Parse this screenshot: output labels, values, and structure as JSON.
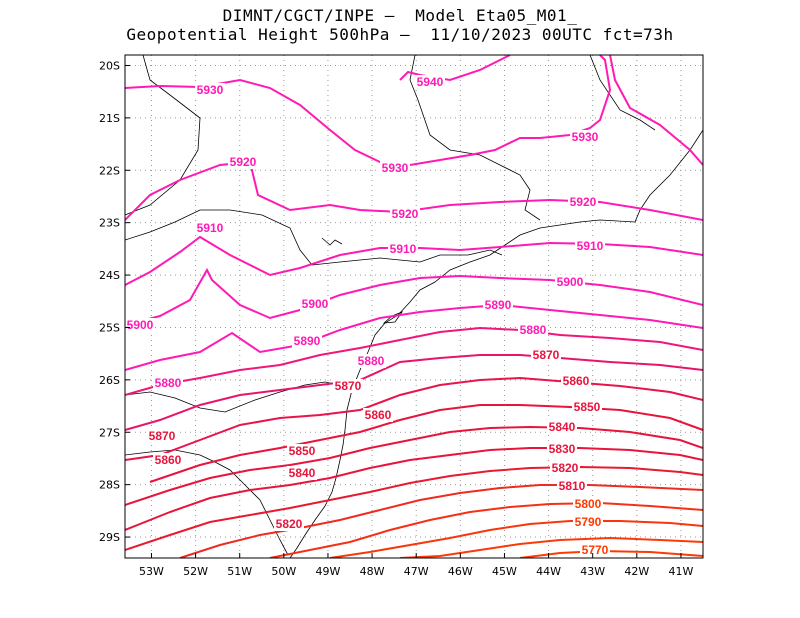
{
  "header": {
    "line1": "DIMNT/CGCT/INPE –  Model Eta05_M01_",
    "line2": "Geopotential Height 500hPa –  11/10/2023 00UTC fct=73h"
  },
  "axes": {
    "lat_labels": [
      "20S",
      "21S",
      "22S",
      "23S",
      "24S",
      "25S",
      "26S",
      "27S",
      "28S",
      "29S"
    ],
    "lon_labels": [
      "53W",
      "52W",
      "51W",
      "50W",
      "49W",
      "48W",
      "47W",
      "46W",
      "45W",
      "44W",
      "43W",
      "42W",
      "41W"
    ]
  },
  "map_data": {
    "type": "contour",
    "variable": "Geopotential Height 500hPa",
    "lon_range": [
      -53.6,
      -40.5
    ],
    "lat_range": [
      -29.4,
      -19.8
    ],
    "contour_labels": [
      {
        "value": 5940,
        "text": "5940"
      },
      {
        "value": 5930,
        "text": "5930"
      },
      {
        "value": 5930,
        "text": "5930"
      },
      {
        "value": 5930,
        "text": "5930"
      },
      {
        "value": 5920,
        "text": "5920"
      },
      {
        "value": 5920,
        "text": "5920"
      },
      {
        "value": 5920,
        "text": "5920"
      },
      {
        "value": 5910,
        "text": "5910"
      },
      {
        "value": 5910,
        "text": "5910"
      },
      {
        "value": 5910,
        "text": "5910"
      },
      {
        "value": 5900,
        "text": "5900"
      },
      {
        "value": 5900,
        "text": "5900"
      },
      {
        "value": 5900,
        "text": "5900"
      },
      {
        "value": 5890,
        "text": "5890"
      },
      {
        "value": 5890,
        "text": "5890"
      },
      {
        "value": 5880,
        "text": "5880"
      },
      {
        "value": 5880,
        "text": "5880"
      },
      {
        "value": 5880,
        "text": "5880"
      },
      {
        "value": 5870,
        "text": "5870"
      },
      {
        "value": 5870,
        "text": "5870"
      },
      {
        "value": 5870,
        "text": "5870"
      },
      {
        "value": 5860,
        "text": "5860"
      },
      {
        "value": 5860,
        "text": "5860"
      },
      {
        "value": 5860,
        "text": "5860"
      },
      {
        "value": 5850,
        "text": "5850"
      },
      {
        "value": 5850,
        "text": "5850"
      },
      {
        "value": 5840,
        "text": "5840"
      },
      {
        "value": 5840,
        "text": "5840"
      },
      {
        "value": 5830,
        "text": "5830"
      },
      {
        "value": 5820,
        "text": "5820"
      },
      {
        "value": 5820,
        "text": "5820"
      },
      {
        "value": 5810,
        "text": "5810"
      },
      {
        "value": 5800,
        "text": "5800"
      },
      {
        "value": 5790,
        "text": "5790"
      },
      {
        "value": 5770,
        "text": "5770"
      }
    ],
    "colors": {
      "high": "#ff1ab4",
      "mid": "#e8143c",
      "low": "#ff3a00",
      "grid": "#999999",
      "border": "#000000"
    }
  }
}
